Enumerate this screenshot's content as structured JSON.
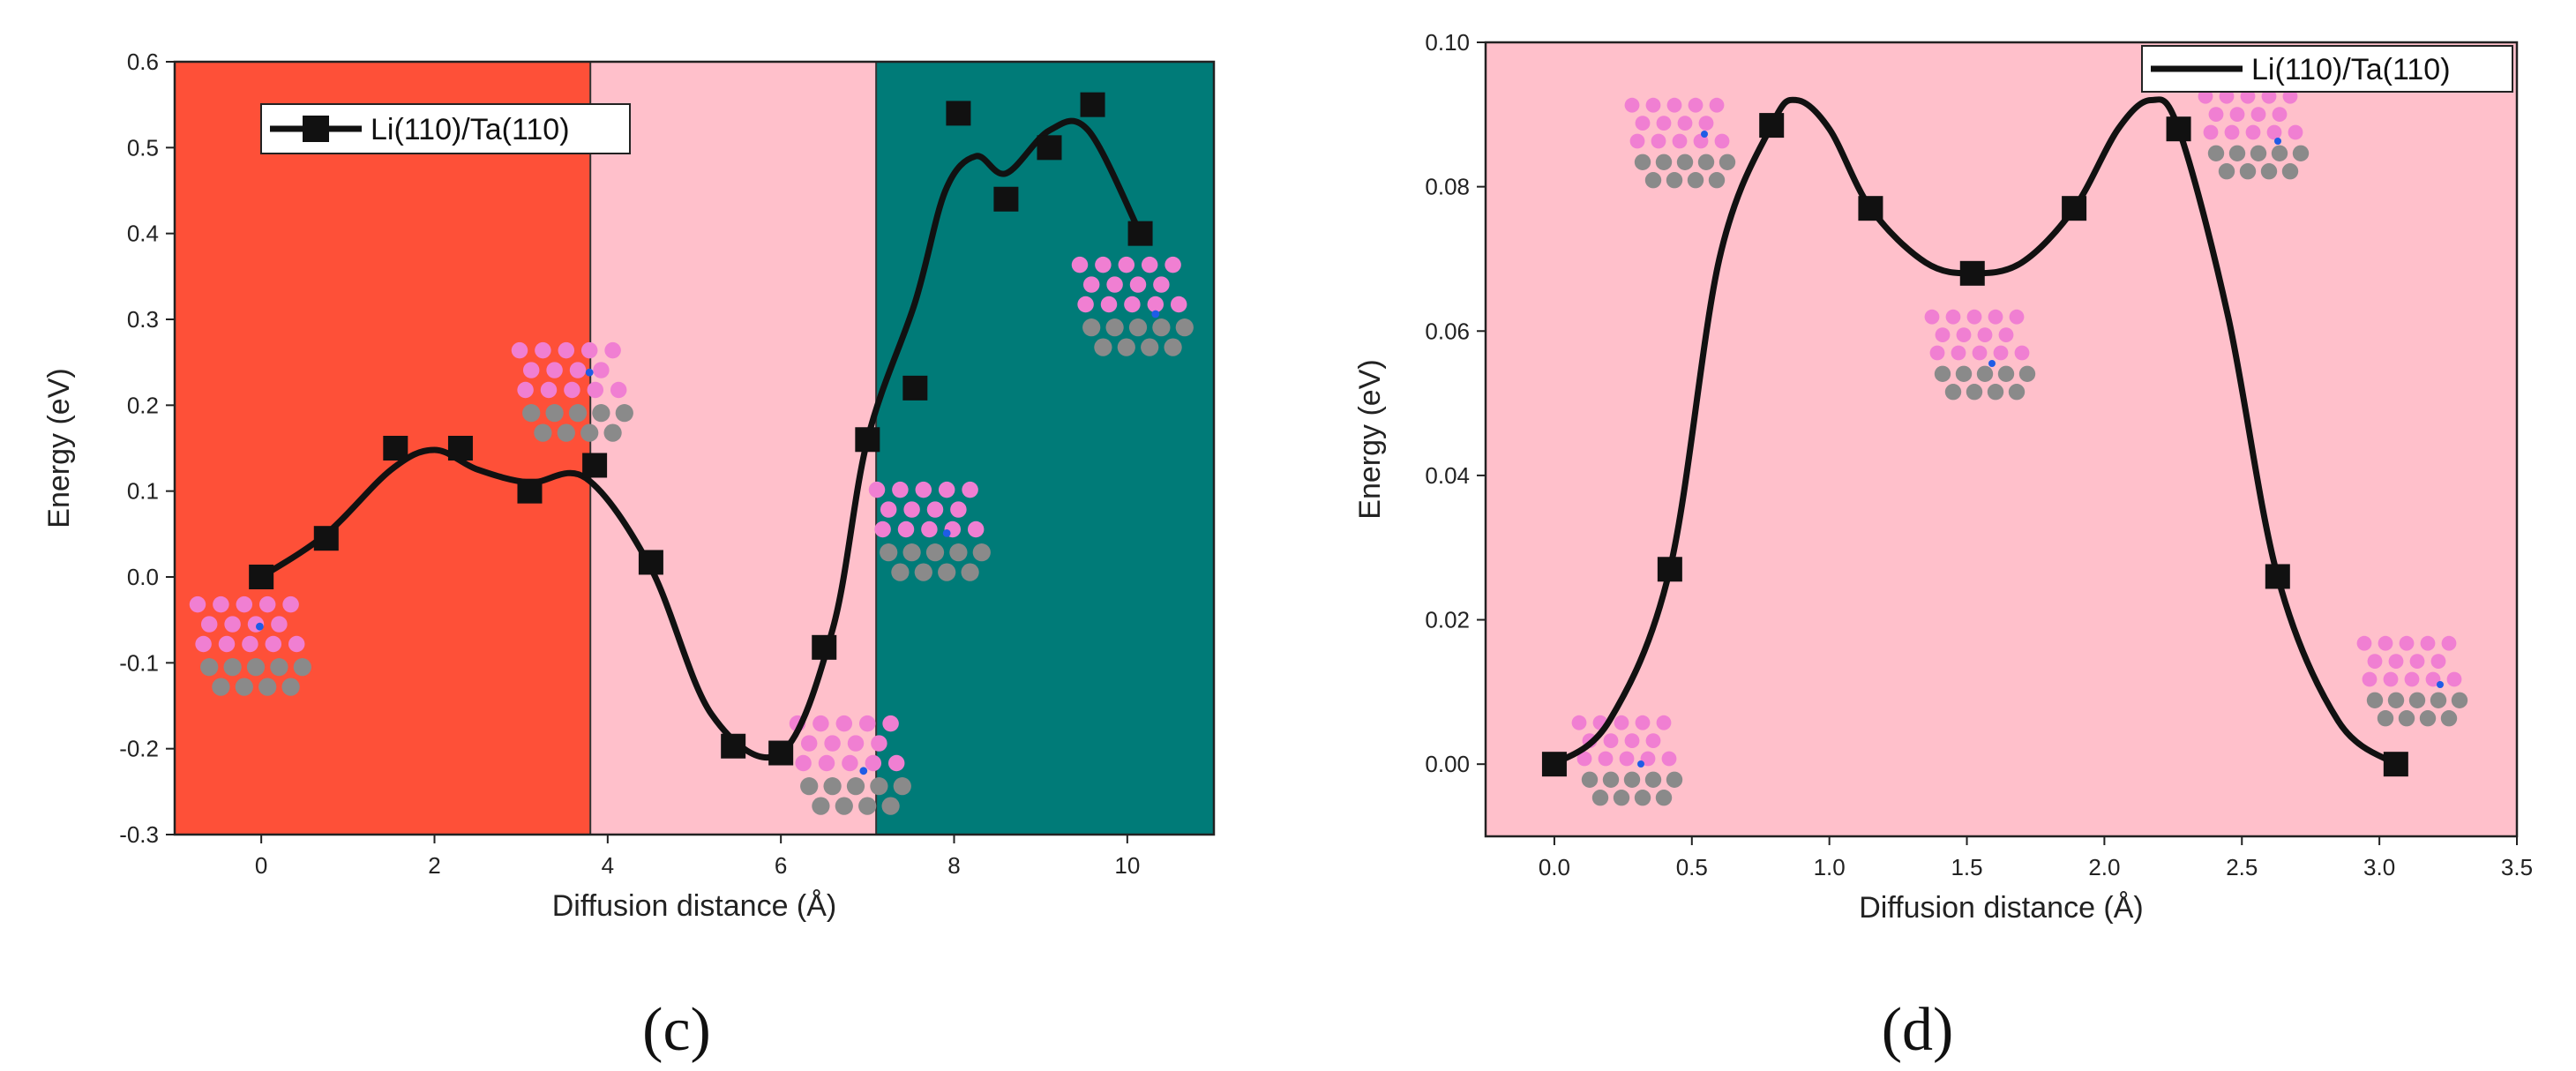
{
  "colors": {
    "region_red": "#fe5038",
    "region_pink": "#ffc0cb",
    "region_teal": "#007b78",
    "line": "#111111",
    "atom_pink": "#f07fd2",
    "atom_gray": "#8a8a8a",
    "atom_blue": "#1f5ce6"
  },
  "chart_data": [
    {
      "panel": "(c)",
      "type": "line",
      "title": "",
      "xlabel": "Diffusion distance (Å)",
      "ylabel": "Energy (eV)",
      "xlim": [
        -1.0,
        11.0
      ],
      "ylim": [
        -0.3,
        0.6
      ],
      "xticks": [
        0,
        2,
        4,
        6,
        8,
        10
      ],
      "yticks": [
        -0.3,
        -0.2,
        -0.1,
        0.0,
        0.1,
        0.2,
        0.3,
        0.4,
        0.5,
        0.6
      ],
      "ytick_decimals": 1,
      "legend": {
        "label": "Li(110)/Ta(110)",
        "position": "top-left"
      },
      "regions": [
        {
          "x_from": -1.0,
          "x_to": 3.8,
          "color": "region_red"
        },
        {
          "x_from": 3.8,
          "x_to": 7.1,
          "color": "region_pink"
        },
        {
          "x_from": 7.1,
          "x_to": 11.0,
          "color": "region_teal"
        }
      ],
      "series": [
        {
          "name": "Li(110)/Ta(110)",
          "x": [
            0.0,
            0.75,
            1.55,
            2.3,
            3.1,
            3.85,
            4.5,
            5.45,
            6.0,
            6.5,
            7.0,
            7.55,
            8.05,
            8.6,
            9.1,
            9.6,
            10.15
          ],
          "y": [
            0.0,
            0.045,
            0.15,
            0.15,
            0.1,
            0.13,
            0.017,
            -0.197,
            -0.205,
            -0.082,
            0.16,
            0.22,
            0.54,
            0.44,
            0.5,
            0.55,
            0.4
          ]
        }
      ],
      "smooth_curve": {
        "x": [
          0.0,
          0.75,
          1.5,
          2.0,
          2.5,
          3.1,
          3.75,
          4.5,
          5.2,
          6.0,
          6.6,
          7.0,
          7.55,
          7.9,
          8.25,
          8.6,
          9.1,
          9.55,
          10.15
        ],
        "y": [
          0.0,
          0.05,
          0.125,
          0.148,
          0.125,
          0.11,
          0.115,
          0.01,
          -0.16,
          -0.205,
          -0.06,
          0.16,
          0.32,
          0.45,
          0.49,
          0.47,
          0.52,
          0.52,
          0.4
        ]
      }
    },
    {
      "panel": "(d)",
      "type": "line",
      "title": "",
      "xlabel": "Diffusion distance (Å)",
      "ylabel": "Energy (eV)",
      "xlim": [
        -0.25,
        3.5
      ],
      "ylim": [
        -0.01,
        0.1
      ],
      "xticks": [
        0.0,
        0.5,
        1.0,
        1.5,
        2.0,
        2.5,
        3.0,
        3.5
      ],
      "xtick_decimals": 1,
      "yticks": [
        0.0,
        0.02,
        0.04,
        0.06,
        0.08,
        0.1
      ],
      "ytick_decimals": 2,
      "legend": {
        "label": "Li(110)/Ta(110)",
        "position": "top-right"
      },
      "regions": [
        {
          "x_from": -0.25,
          "x_to": 3.5,
          "color": "region_pink"
        }
      ],
      "series": [
        {
          "name": "Li(110)/Ta(110)",
          "x": [
            0.0,
            0.42,
            0.79,
            1.15,
            1.52,
            1.89,
            2.27,
            2.63,
            3.06
          ],
          "y": [
            0.0,
            0.027,
            0.0885,
            0.077,
            0.068,
            0.077,
            0.088,
            0.026,
            0.0
          ]
        }
      ],
      "smooth_curve": {
        "x": [
          0.0,
          0.2,
          0.42,
          0.6,
          0.79,
          0.88,
          1.0,
          1.15,
          1.35,
          1.52,
          1.7,
          1.89,
          2.05,
          2.17,
          2.27,
          2.45,
          2.63,
          2.85,
          3.06
        ],
        "y": [
          0.0,
          0.006,
          0.027,
          0.07,
          0.0885,
          0.092,
          0.088,
          0.077,
          0.0695,
          0.068,
          0.0695,
          0.077,
          0.088,
          0.092,
          0.088,
          0.062,
          0.026,
          0.006,
          0.0
        ]
      }
    }
  ]
}
